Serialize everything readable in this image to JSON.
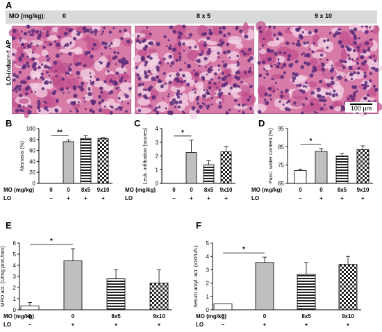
{
  "panel_a": {
    "letter": "A",
    "header_label": "MO (mg/kg):",
    "doses": [
      "0",
      "8 x 5",
      "9 x 10"
    ],
    "side_label": "LO-induced AP",
    "scale_bar": "100 µm",
    "colors": {
      "header_bg": "#d9d9d9",
      "tissue_pink": "#d77aa8",
      "nuclei_purple": "#5a2a78"
    }
  },
  "dose_label": "MO (mg/kg)",
  "lo_label": "LO",
  "chart_data": [
    {
      "panel": "B",
      "type": "bar",
      "categories": [
        "0",
        "0",
        "8x5",
        "9x10"
      ],
      "lo": [
        "–",
        "+",
        "+",
        "+"
      ],
      "values": [
        0,
        76,
        82,
        82
      ],
      "errors": [
        0,
        3,
        5,
        2
      ],
      "ylabel": "Necrosis (%)",
      "ylim": [
        0,
        100
      ],
      "yticks": [
        "0",
        "20",
        "40",
        "60",
        "80",
        "100"
      ],
      "significance": "**"
    },
    {
      "panel": "C",
      "type": "bar",
      "categories": [
        "0",
        "0",
        "8x5",
        "9x10"
      ],
      "lo": [
        "–",
        "+",
        "+",
        "+"
      ],
      "values": [
        0,
        2.25,
        1.35,
        2.3
      ],
      "errors": [
        0,
        0.9,
        0.3,
        0.4
      ],
      "ylabel": "Leuk. infiltration (scores)",
      "ylim": [
        0,
        4
      ],
      "yticks": [
        "0",
        "1",
        "2",
        "3",
        "4"
      ],
      "significance": "*"
    },
    {
      "panel": "D",
      "type": "bar",
      "categories": [
        "0",
        "0",
        "8x5",
        "9x10"
      ],
      "lo": [
        "–",
        "+",
        "+",
        "+"
      ],
      "values": [
        72,
        82.5,
        80,
        83.5
      ],
      "errors": [
        0.8,
        1.5,
        1.5,
        2
      ],
      "ylabel": "Panc. water content (%)",
      "ylim": [
        65,
        95
      ],
      "yticks": [
        "65",
        "75",
        "85",
        "95"
      ],
      "significance": "*"
    },
    {
      "panel": "E",
      "type": "bar",
      "categories": [
        "0",
        "0",
        "8x5",
        "9x10"
      ],
      "lo": [
        "–",
        "+",
        "+",
        "+"
      ],
      "values": [
        0.35,
        4.4,
        2.8,
        2.4
      ],
      "errors": [
        0.3,
        1.1,
        0.8,
        1.2
      ],
      "ylabel": "MPO act. (U/mg prot./min)",
      "ylim": [
        0,
        6
      ],
      "yticks": [
        "0",
        "1",
        "2",
        "3",
        "4",
        "5",
        "6"
      ],
      "significance": "*"
    },
    {
      "panel": "F",
      "type": "bar",
      "categories": [
        "0",
        "0",
        "8x5",
        "9x10"
      ],
      "lo": [
        "–",
        "+",
        "+",
        "+"
      ],
      "values": [
        0.45,
        3.55,
        2.65,
        3.4
      ],
      "errors": [
        0,
        0.4,
        0.9,
        0.6
      ],
      "ylabel": "Serum amyl. act. (x10³U/L)",
      "ylim": [
        0,
        5
      ],
      "yticks": [
        "0",
        "1",
        "2",
        "3",
        "4",
        "5"
      ],
      "significance": "*"
    }
  ]
}
